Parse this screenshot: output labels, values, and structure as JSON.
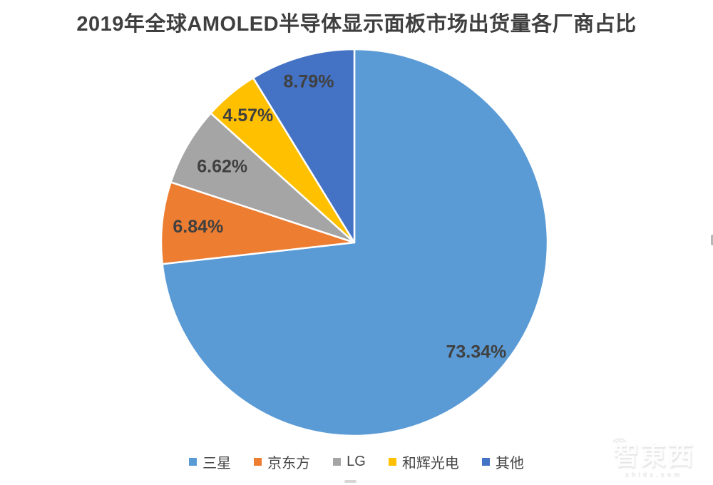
{
  "title": "2019年全球AMOLED半导体显示面板市场出货量各厂商占比",
  "chart_data": {
    "type": "pie",
    "title": "2019年全球AMOLED半导体显示面板市场出货量各厂商占比",
    "categories": [
      "三星",
      "京东方",
      "LG",
      "和辉光电",
      "其他"
    ],
    "values": [
      73.34,
      6.84,
      6.62,
      4.57,
      8.79
    ],
    "data_labels": [
      "73.34%",
      "6.84%",
      "6.62%",
      "4.57%",
      "8.79%"
    ],
    "colors": [
      "#5B9BD5",
      "#ED7D31",
      "#A5A5A5",
      "#FFC000",
      "#4472C4"
    ],
    "slice_border_color": "#FFFFFF",
    "label_color": "#404040",
    "start_angle_deg": 0,
    "direction": "clockwise",
    "legend_position": "bottom",
    "background": "#FFFFFF"
  },
  "legend_text_color": "#444444",
  "watermark": {
    "text": "智東西",
    "subtext": "zhidx.com"
  }
}
